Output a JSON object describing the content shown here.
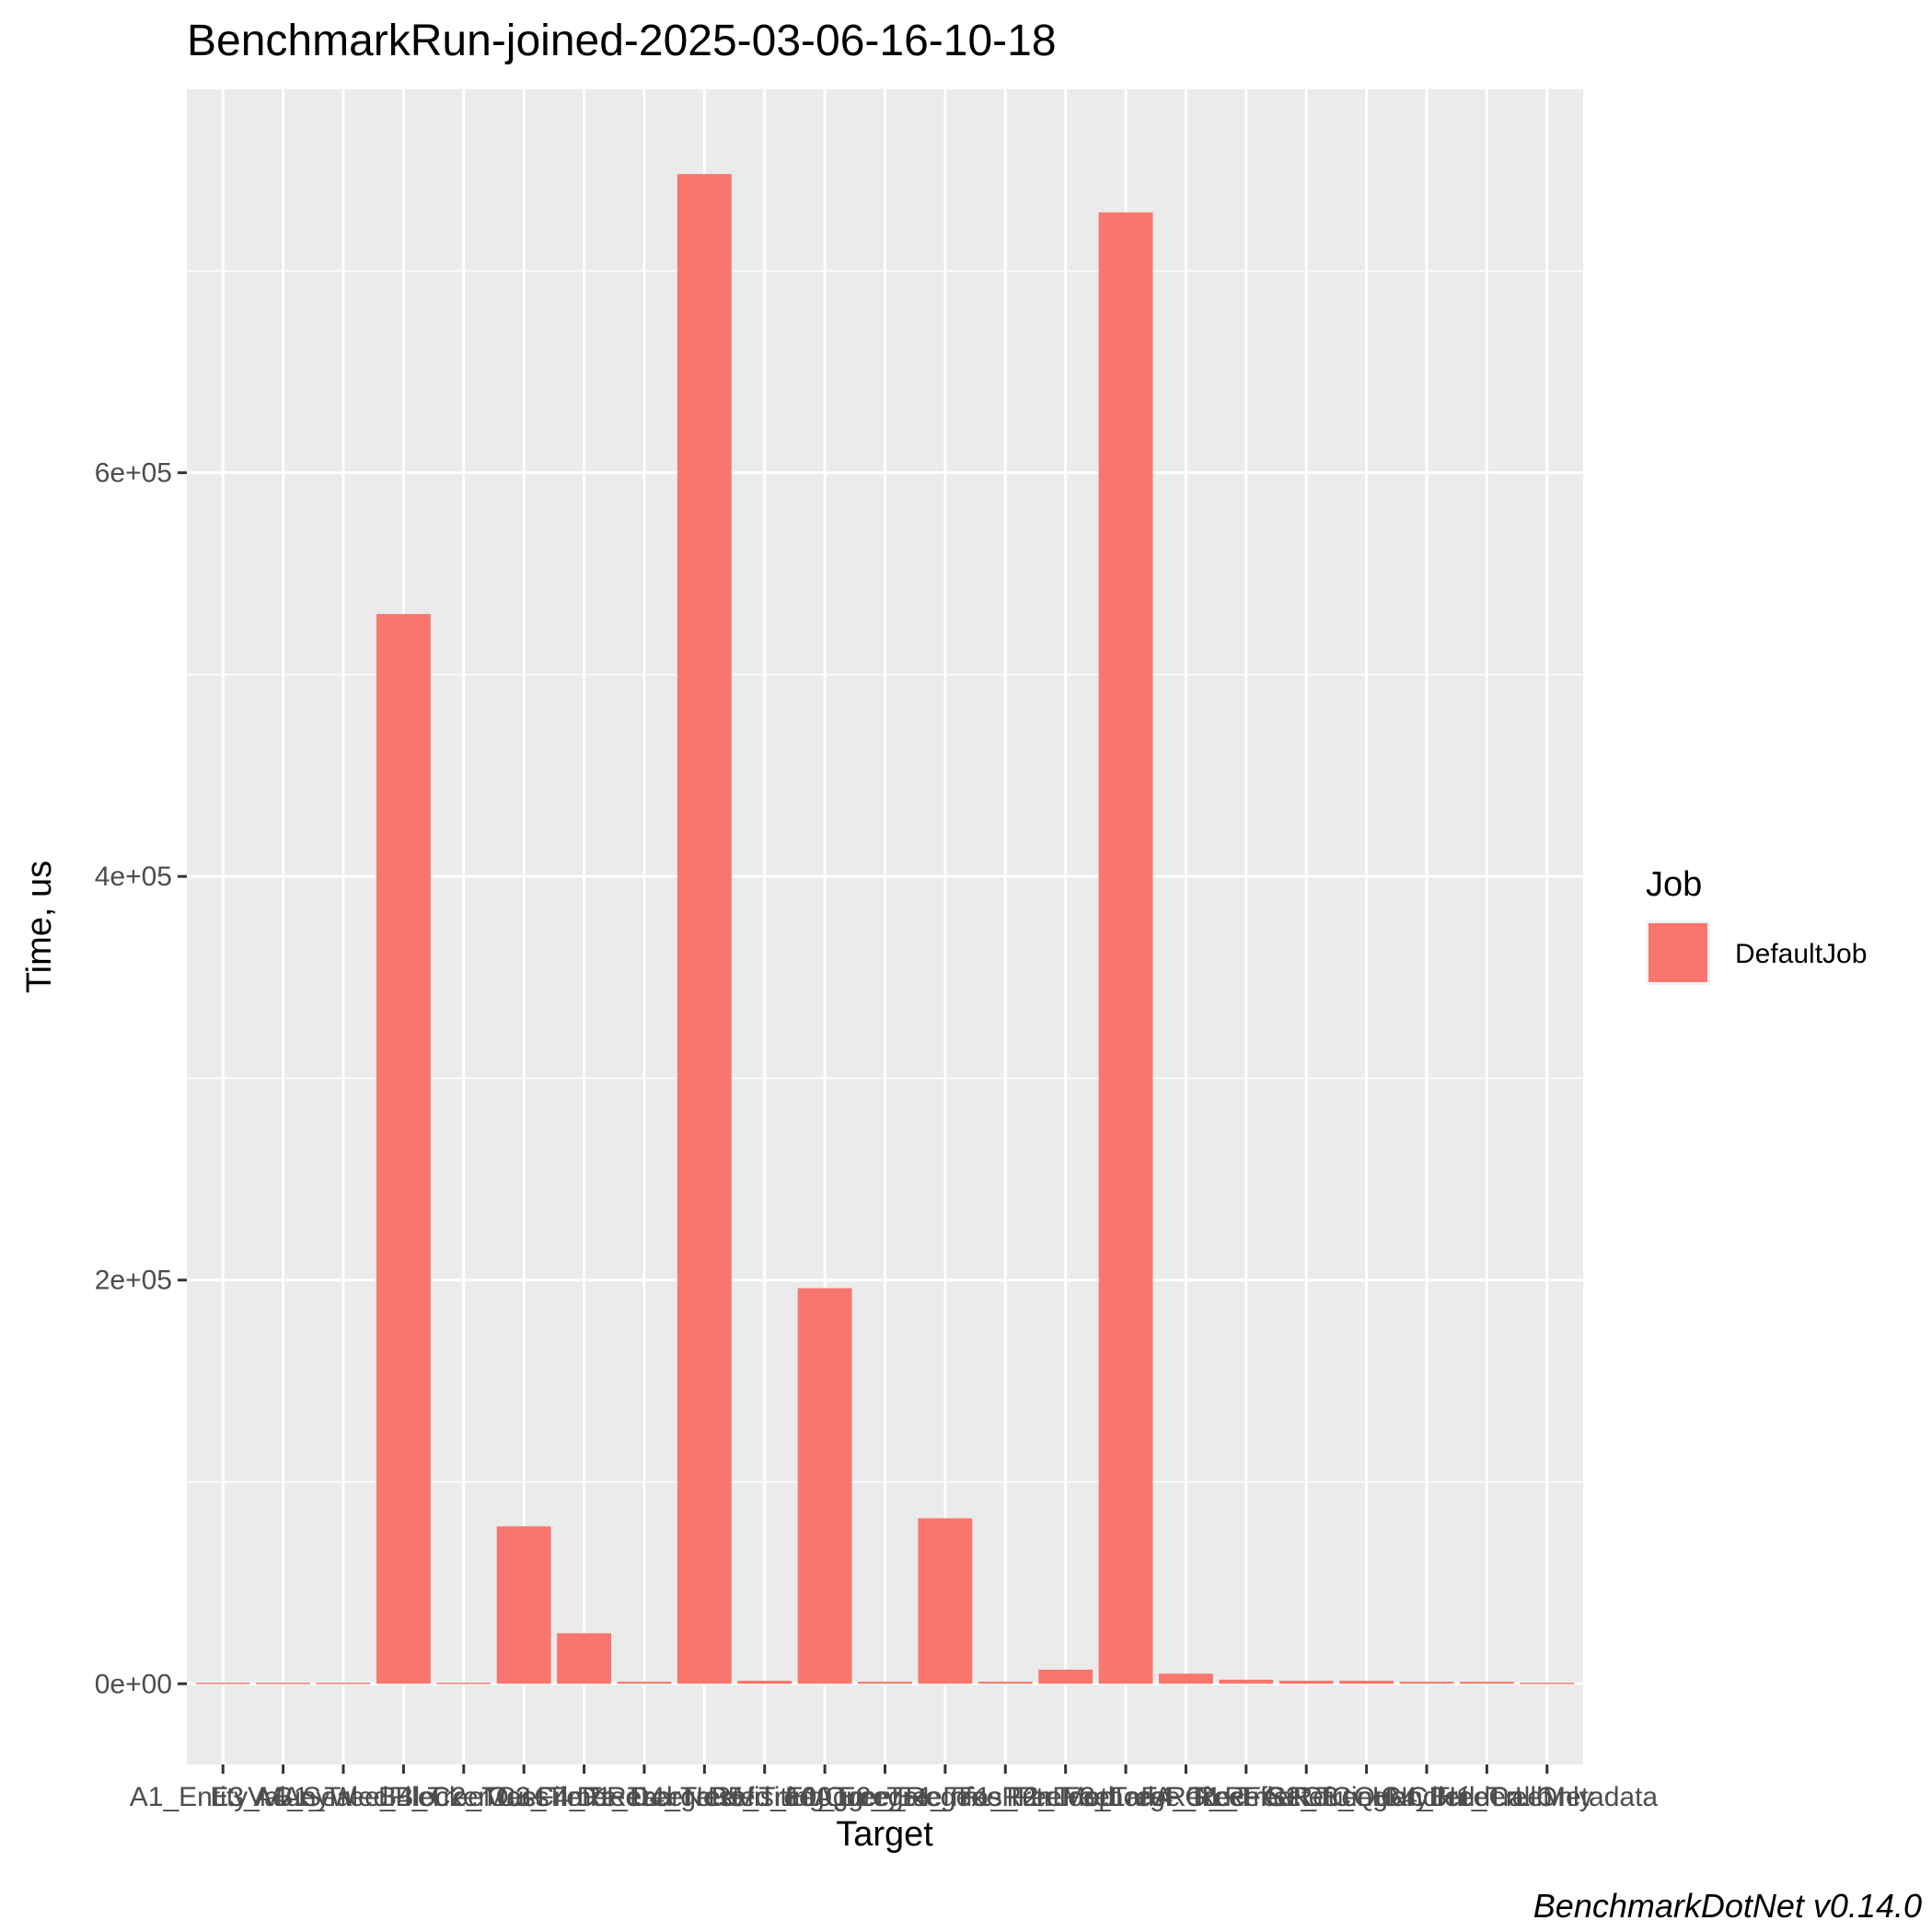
{
  "chart_data": {
    "type": "bar",
    "title": "BenchmarkRun-joined-2025-03-06-16-10-18",
    "xlabel": "Target",
    "ylabel": "Time, us",
    "caption": "BenchmarkDotNet v0.14.0",
    "legend": {
      "title": "Job",
      "placement": "right",
      "entries": [
        "DefaultJob"
      ]
    },
    "ylim": [
      -40000,
      790000
    ],
    "yticks": [
      0,
      200000,
      400000,
      600000
    ],
    "ytick_labels": [
      "0e+00",
      "2e+05",
      "4e+05",
      "6e+05"
    ],
    "grid": true,
    "series": [
      {
        "name": "DefaultJob",
        "color": "#F8766D",
        "values": [
          500,
          500,
          500,
          530000,
          500,
          78000,
          25000,
          1000,
          748000,
          1500,
          196000,
          1000,
          82000,
          1000,
          7000,
          729000,
          5000,
          2000,
          1500,
          1500,
          1000,
          1000,
          500
        ]
      }
    ],
    "categories": [
      "A1_EntityVal...",
      "E3_MAnyW...",
      "A4_SealedFil...",
      "B1_Tree_BlockerO...",
      "B4_TreeMass...",
      "C2_TreeFile...",
      "C3_TimeRe...",
      "C4_TreeLarge...",
      "D1_TreeNested_1...",
      "D4_TreeVisitingQ...",
      "D5_TreeAggreg...",
      "E1_Tree_Re...",
      "E2_TreeInfos_Pt...",
      "E4_TreeRun...",
      "F1_TreeMethod...",
      "F2_TreeLarge_R...",
      "F3_TreeRef_Ref...",
      "F4_TreeFileRef...",
      "G1_TreeRouting...",
      "G2_TreeHandler...",
      "G3_QueryBuilder...",
      "G4_TreeCallOnly...",
      "H1_TreeMetadata"
    ],
    "category_labels": [
      "A1_EntityValue",
      "E3_MAnyW",
      "A4_SealedFile",
      "B1_Tree_BlockerOut",
      "B4_TreeMass",
      "C2_TreeFileRe",
      "C3_TimeRead",
      "C4_TreeLargeRef",
      "D1_TreeNested_100",
      "D4_TreeVisitingQuery",
      "D5_TreeAggregate",
      "E1_Tree_Regex",
      "E2_TreeInfos_Ptr",
      "E4_TreeRunLoop",
      "F1_TreeMethodA",
      "F2_TreeLarge_Rec",
      "F3_TreeRef_RefSet",
      "F4_TreeFileRefC",
      "G1_TreeRoutingNC",
      "G2_TreeHandler",
      "G3_QueryBuilderLib",
      "G4_TreeCallOnly",
      "H1_TreeMetadata"
    ]
  }
}
